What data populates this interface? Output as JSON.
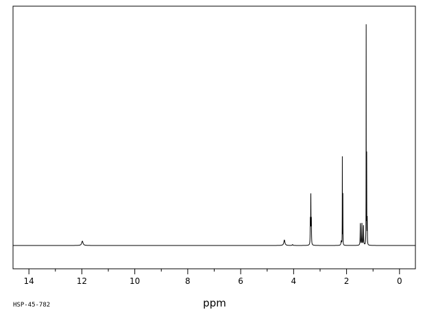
{
  "chart_data": {
    "type": "line",
    "title": "",
    "xlabel": "ppm",
    "ylabel": "",
    "xlim": [
      14.6,
      -0.6
    ],
    "ylim": [
      0,
      1
    ],
    "x_reversed": true,
    "grid": false,
    "legend": "none",
    "line_color": "#000000",
    "x_ticks": [
      {
        "value": 14,
        "label": "14"
      },
      {
        "value": 12,
        "label": "12"
      },
      {
        "value": 10,
        "label": "10"
      },
      {
        "value": 8,
        "label": "8"
      },
      {
        "value": 6,
        "label": "6"
      },
      {
        "value": 4,
        "label": "4"
      },
      {
        "value": 2,
        "label": "2"
      },
      {
        "value": 0,
        "label": "0"
      }
    ],
    "x_minor_ticks": [
      13,
      11,
      9,
      7,
      5,
      3,
      1
    ],
    "peaks": [
      {
        "ppm": 11.98,
        "intensity": 0.02,
        "width": 0.06
      },
      {
        "ppm": 4.35,
        "intensity": 0.025,
        "width": 0.05
      },
      {
        "ppm": 4.04,
        "intensity": 0.004,
        "width": 0.03
      },
      {
        "ppm": 3.37,
        "intensity": 0.11,
        "width": 0.012
      },
      {
        "ppm": 3.35,
        "intensity": 0.22,
        "width": 0.012
      },
      {
        "ppm": 3.33,
        "intensity": 0.11,
        "width": 0.012
      },
      {
        "ppm": 2.2,
        "intensity": 0.019,
        "width": 0.03
      },
      {
        "ppm": 2.16,
        "intensity": 0.4,
        "width": 0.006
      },
      {
        "ppm": 2.14,
        "intensity": 0.23,
        "width": 0.006
      },
      {
        "ppm": 1.48,
        "intensity": 0.1,
        "width": 0.015
      },
      {
        "ppm": 1.42,
        "intensity": 0.1,
        "width": 0.015
      },
      {
        "ppm": 1.36,
        "intensity": 0.09,
        "width": 0.015
      },
      {
        "ppm": 1.26,
        "intensity": 1.0,
        "width": 0.006
      },
      {
        "ppm": 1.24,
        "intensity": 0.4,
        "width": 0.006
      },
      {
        "ppm": 1.22,
        "intensity": 0.12,
        "width": 0.01
      }
    ]
  },
  "footer": {
    "spectrum_id": "HSP-45-782"
  }
}
